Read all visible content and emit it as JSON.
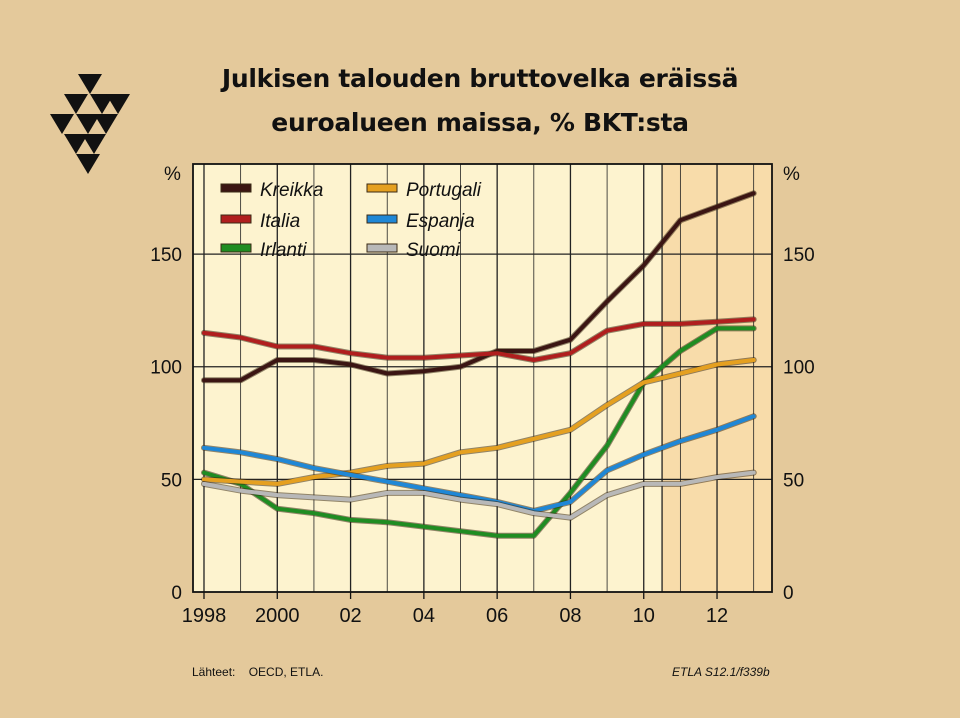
{
  "title_line1": "Julkisen talouden bruttovelka eräissä",
  "title_line2": "euroalueen maissa, % BKT:sta",
  "footer": {
    "sources_label": "Lähteet:",
    "sources": "OECD, ETLA.",
    "code": "ETLA S12.1/f339b"
  },
  "colors": {
    "background": "#e4c99b",
    "plot_background": "#fdf3cf",
    "forecast_background": "#f8dcaa"
  },
  "chart_data": {
    "type": "line",
    "x": [
      1998,
      1999,
      2000,
      2001,
      2002,
      2003,
      2004,
      2005,
      2006,
      2007,
      2008,
      2009,
      2010,
      2011,
      2012,
      2013
    ],
    "x_tick_values": [
      1998,
      2000,
      2002,
      2004,
      2006,
      2008,
      2010,
      2012
    ],
    "x_tick_labels": [
      "1998",
      "2000",
      "02",
      "04",
      "06",
      "08",
      "10",
      "12"
    ],
    "y_ticks": [
      0,
      50,
      100,
      150
    ],
    "ylim": [
      0,
      190
    ],
    "xlim": [
      1997.7,
      2013.5
    ],
    "y_unit_left": "%",
    "y_unit_right": "%",
    "grid": true,
    "forecast_from": 2010.5,
    "legend_position": "top-left",
    "series": [
      {
        "name": "Kreikka",
        "color": "#3b1513",
        "values": [
          94,
          94,
          103,
          103,
          101,
          97,
          98,
          100,
          107,
          107,
          112,
          129,
          145,
          165,
          171,
          177
        ]
      },
      {
        "name": "Italia",
        "color": "#b01e1e",
        "values": [
          115,
          113,
          109,
          109,
          106,
          104,
          104,
          105,
          106,
          103,
          106,
          116,
          119,
          119,
          120,
          121
        ]
      },
      {
        "name": "Irlanti",
        "color": "#1f8c22",
        "values": [
          53,
          48,
          37,
          35,
          32,
          31,
          29,
          27,
          25,
          25,
          44,
          65,
          93,
          107,
          117,
          117
        ]
      },
      {
        "name": "Portugali",
        "color": "#e5a020",
        "values": [
          50,
          49,
          48,
          51,
          53,
          56,
          57,
          62,
          64,
          68,
          72,
          83,
          93,
          97,
          101,
          103
        ]
      },
      {
        "name": "Espanja",
        "color": "#1f87d6",
        "values": [
          64,
          62,
          59,
          55,
          52,
          49,
          46,
          43,
          40,
          36,
          40,
          54,
          61,
          67,
          72,
          78
        ]
      },
      {
        "name": "Suomi",
        "color": "#b8b8b8",
        "values": [
          48,
          45,
          43,
          42,
          41,
          44,
          44,
          41,
          39,
          35,
          33,
          43,
          48,
          48,
          51,
          53
        ]
      }
    ]
  }
}
